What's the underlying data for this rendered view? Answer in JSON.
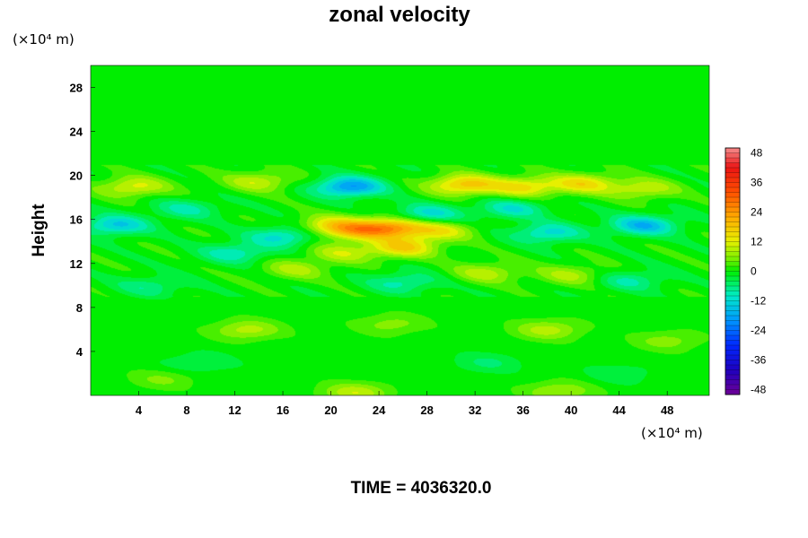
{
  "chart_data": {
    "type": "heatmap",
    "title": "zonal velocity",
    "ylabel": "Height",
    "x_unit": "(×10⁴ m)",
    "y_unit": "(×10⁴ m)",
    "xlim": [
      0,
      51.5
    ],
    "ylim": [
      0,
      30
    ],
    "x_ticks": [
      4,
      8,
      12,
      16,
      20,
      24,
      28,
      32,
      36,
      40,
      44,
      48
    ],
    "y_ticks": [
      4,
      8,
      12,
      16,
      20,
      24,
      28
    ],
    "colorbar": {
      "range": [
        -50,
        50
      ],
      "ticks": [
        48,
        36,
        24,
        12,
        0,
        -12,
        -24,
        -36,
        -48
      ]
    },
    "field_features": [
      {
        "x": 3.5,
        "y": 19.0,
        "value": 12
      },
      {
        "x": 14.0,
        "y": 19.5,
        "value": 10
      },
      {
        "x": 20.0,
        "y": 15.5,
        "value": 12
      },
      {
        "x": 22.0,
        "y": 15.0,
        "value": 14
      },
      {
        "x": 25.0,
        "y": 15.3,
        "value": 22
      },
      {
        "x": 26.0,
        "y": 13.5,
        "value": 16
      },
      {
        "x": 29.0,
        "y": 15.0,
        "value": 12
      },
      {
        "x": 31.0,
        "y": 19.2,
        "value": 18
      },
      {
        "x": 36.0,
        "y": 19.0,
        "value": 14
      },
      {
        "x": 41.0,
        "y": 19.3,
        "value": 14
      },
      {
        "x": 46.0,
        "y": 18.8,
        "value": 10
      },
      {
        "x": 21.0,
        "y": 13.0,
        "value": 9
      },
      {
        "x": 17.0,
        "y": 11.5,
        "value": 8
      },
      {
        "x": 33.0,
        "y": 11.2,
        "value": 9
      },
      {
        "x": 40.0,
        "y": 11.0,
        "value": 8
      },
      {
        "x": 13.0,
        "y": 6.0,
        "value": 9
      },
      {
        "x": 25.0,
        "y": 6.5,
        "value": 6
      },
      {
        "x": 38.0,
        "y": 6.0,
        "value": 9
      },
      {
        "x": 48.0,
        "y": 5.0,
        "value": 6
      },
      {
        "x": 22.0,
        "y": 0.3,
        "value": 10
      },
      {
        "x": 39.0,
        "y": 0.4,
        "value": 8
      },
      {
        "x": 6.0,
        "y": 1.5,
        "value": 5
      },
      {
        "x": 2.0,
        "y": 15.5,
        "value": -14
      },
      {
        "x": 16.0,
        "y": 14.5,
        "value": -12
      },
      {
        "x": 21.5,
        "y": 19.0,
        "value": -20
      },
      {
        "x": 38.0,
        "y": 14.8,
        "value": -12
      },
      {
        "x": 46.0,
        "y": 15.5,
        "value": -16
      },
      {
        "x": 35.0,
        "y": 17.0,
        "value": -10
      },
      {
        "x": 8.0,
        "y": 17.0,
        "value": -8
      },
      {
        "x": 12.0,
        "y": 13.0,
        "value": -10
      },
      {
        "x": 28.0,
        "y": 16.5,
        "value": -12
      },
      {
        "x": 26.0,
        "y": 10.3,
        "value": -9
      },
      {
        "x": 5.0,
        "y": 10.0,
        "value": -7
      },
      {
        "x": 45.0,
        "y": 10.5,
        "value": -8
      },
      {
        "x": 9.0,
        "y": 3.0,
        "value": -5
      },
      {
        "x": 33.0,
        "y": 3.0,
        "value": -5
      },
      {
        "x": 44.0,
        "y": 2.0,
        "value": -4
      }
    ]
  },
  "footer": {
    "time_label": "TIME = 4036320.0"
  }
}
